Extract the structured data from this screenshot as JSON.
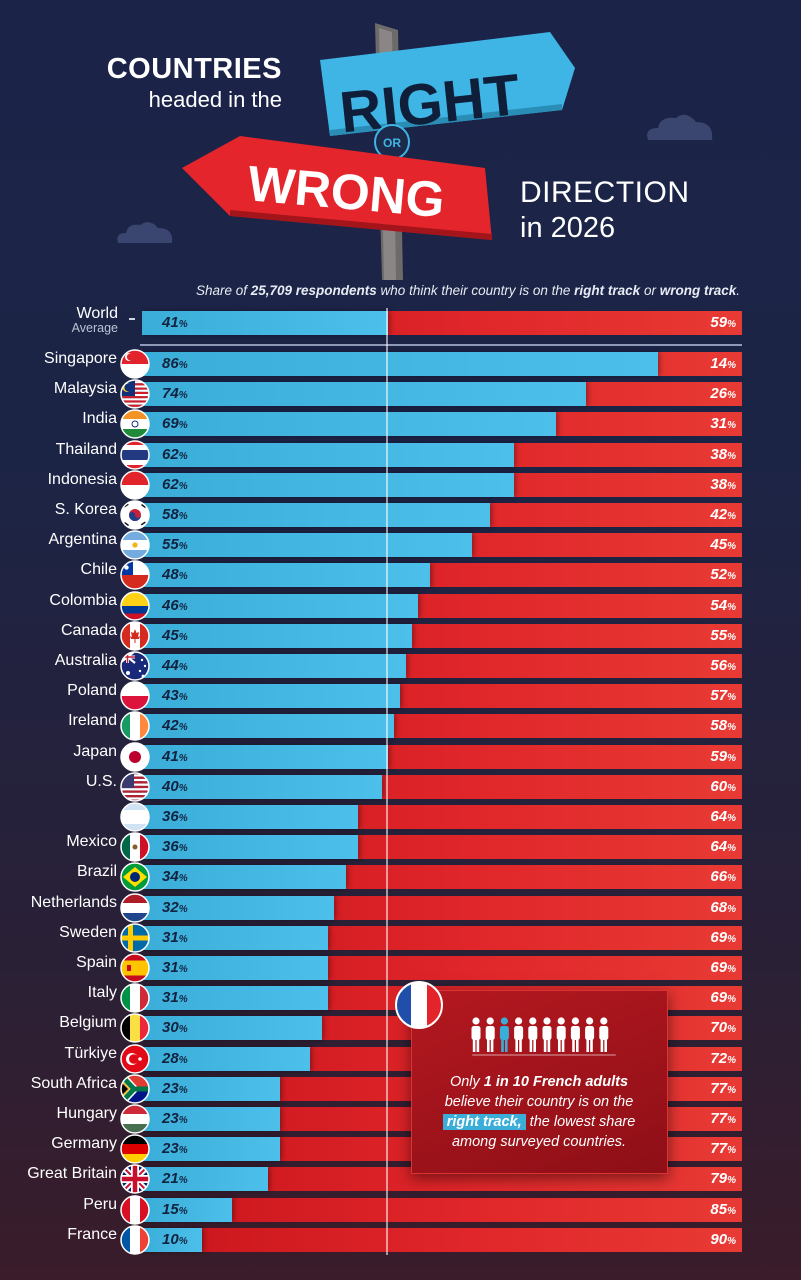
{
  "title": {
    "left_line1": "COUNTRIES",
    "left_line2": "headed in the",
    "sign_right": "RIGHT",
    "sign_or": "OR",
    "sign_wrong": "WRONG",
    "right_line1": "DIRECTION",
    "right_line2": "in 2026"
  },
  "subtitle": {
    "prefix": "Share of ",
    "count": "25,709 respondents",
    "middle": " who think their country is on the ",
    "right": "right track",
    "or": " or ",
    "wrong": "wrong track",
    "suffix": "."
  },
  "world": {
    "label1": "World",
    "label2": "Average",
    "dash": "-",
    "right": 41,
    "wrong": 59
  },
  "colors": {
    "right": "#3aaed8",
    "wrong": "#d81e24",
    "background": "#1c2446"
  },
  "chart_data": {
    "type": "bar",
    "orientation": "horizontal-stacked",
    "categories": [
      "Singapore",
      "Malaysia",
      "India",
      "Thailand",
      "Indonesia",
      "S. Korea",
      "Argentina",
      "Chile",
      "Colombia",
      "Canada",
      "Australia",
      "Poland",
      "Ireland",
      "Japan",
      "U.S.",
      "",
      "Mexico",
      "Brazil",
      "Netherlands",
      "Sweden",
      "Spain",
      "Italy",
      "Belgium",
      "Türkiye",
      "South Africa",
      "Hungary",
      "Germany",
      "Great Britain",
      "Peru",
      "France"
    ],
    "flags": [
      "singapore",
      "malaysia",
      "india",
      "thailand",
      "indonesia",
      "south-korea",
      "argentina",
      "chile",
      "colombia",
      "canada",
      "australia",
      "poland",
      "ireland",
      "japan",
      "usa",
      "unlabeled-blue-white",
      "mexico",
      "brazil",
      "netherlands",
      "sweden",
      "spain",
      "italy",
      "belgium",
      "turkiye",
      "south-africa",
      "hungary",
      "germany",
      "great-britain",
      "peru",
      "france"
    ],
    "series": [
      {
        "name": "right track",
        "values": [
          86,
          74,
          69,
          62,
          62,
          58,
          55,
          48,
          46,
          45,
          44,
          43,
          42,
          41,
          40,
          36,
          36,
          34,
          32,
          31,
          31,
          31,
          30,
          28,
          23,
          23,
          23,
          21,
          15,
          10
        ]
      },
      {
        "name": "wrong track",
        "values": [
          14,
          26,
          31,
          38,
          38,
          42,
          45,
          52,
          54,
          55,
          56,
          57,
          58,
          59,
          60,
          64,
          64,
          66,
          68,
          69,
          69,
          69,
          70,
          72,
          77,
          77,
          77,
          79,
          85,
          90
        ]
      }
    ],
    "unit": "%",
    "xlim": [
      0,
      100
    ]
  },
  "callout": {
    "line1_pre": "Only ",
    "line1_bold": "1 in 10 French adults",
    "line2": "believe their country is on the",
    "highlight": "right track,",
    "line3_post": " the lowest share",
    "line4": "among surveyed countries.",
    "icon": "france-flag-icon",
    "people_icon": "ten-people-icon"
  }
}
